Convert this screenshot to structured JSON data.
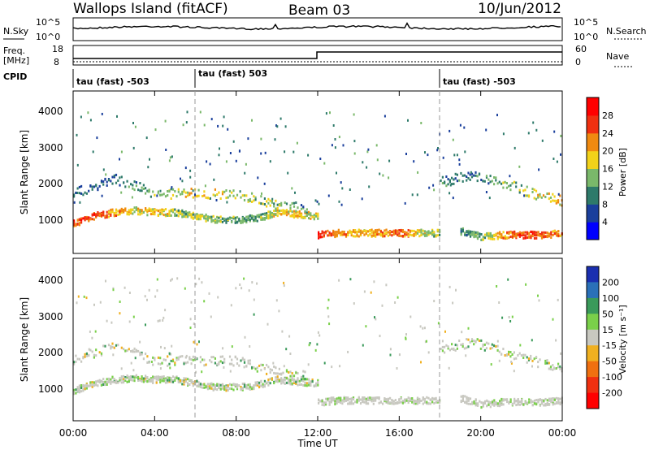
{
  "header": {
    "title": "Wallops Island (fitACF)",
    "beam": "Beam 03",
    "date": "10/Jun/2012"
  },
  "noise_panel": {
    "left_label": "N.Sky",
    "left_ticks": [
      "10^5",
      "10^0"
    ],
    "right_label": "N.Search",
    "right_ticks": [
      "10^5",
      "10^0"
    ]
  },
  "freq_panel": {
    "left_label_1": "Freq.",
    "left_label_2": "[MHz]",
    "left_ticks": [
      "18",
      "8"
    ],
    "right_label": "Nave",
    "right_ticks": [
      "60",
      "0"
    ]
  },
  "cpid_panel": {
    "label": "CPID",
    "segments": [
      "tau (fast) -503",
      "tau (fast) 503",
      "tau (fast) -503"
    ]
  },
  "power_panel": {
    "ylabel": "Slant Range [km]",
    "yticks": [
      "1000",
      "2000",
      "3000",
      "4000"
    ],
    "colorbar_label": "Power [dB]",
    "colorbar_ticks": [
      "4",
      "8",
      "12",
      "16",
      "20",
      "24",
      "28"
    ],
    "colors": [
      "#0000ff",
      "#1a3f9c",
      "#2e7a6a",
      "#7ab86a",
      "#f2d21a",
      "#f08a10",
      "#f03010",
      "#ff0000"
    ]
  },
  "velocity_panel": {
    "ylabel": "Slant Range [km]",
    "yticks": [
      "1000",
      "2000",
      "3000",
      "4000"
    ],
    "colorbar_label": "Velocity [m s⁻¹]",
    "colorbar_ticks": [
      "200",
      "100",
      "50",
      "15",
      "-15",
      "-50",
      "-100",
      "-200"
    ],
    "colors": [
      "#1a2fb0",
      "#2a70b8",
      "#3a9a5a",
      "#7ad04a",
      "#c8c8c0",
      "#f0b020",
      "#f07010",
      "#f03010",
      "#ff0000"
    ]
  },
  "x_axis": {
    "label": "Time UT",
    "ticks": [
      "00:00",
      "04:00",
      "08:00",
      "12:00",
      "16:00",
      "20:00",
      "00:00"
    ]
  },
  "chart_data": {
    "type": "heatmap",
    "x_range_hours": [
      0,
      24
    ],
    "y_range_km": [
      180,
      4500
    ],
    "freq_mhz_segments": [
      {
        "from_hours": 0,
        "to_hours": 12,
        "value": 10
      },
      {
        "from_hours": 12,
        "to_hours": 24,
        "value": 13
      }
    ],
    "cpid_change_hours": [
      6,
      18
    ],
    "scatter_bands": [
      {
        "t": [
          0,
          1,
          2,
          3,
          4,
          5,
          6,
          7,
          8,
          9,
          10,
          11,
          12
        ],
        "range_km": [
          1000,
          1200,
          1300,
          1350,
          1300,
          1300,
          1200,
          1100,
          1100,
          1150,
          1300,
          1250,
          1200
        ],
        "power_db": [
          26,
          25,
          22,
          18,
          20,
          14,
          16,
          14,
          12,
          12,
          18,
          20,
          16
        ]
      },
      {
        "t": [
          12,
          13,
          14,
          15,
          16,
          17,
          18
        ],
        "range_km": [
          700,
          750,
          750,
          750,
          750,
          750,
          750
        ],
        "power_db": [
          28,
          22,
          18,
          22,
          24,
          18,
          14
        ]
      },
      {
        "t": [
          19,
          20,
          21,
          22,
          23,
          24
        ],
        "range_km": [
          800,
          650,
          700,
          700,
          700,
          750
        ],
        "power_db": [
          10,
          14,
          22,
          26,
          24,
          22
        ]
      },
      {
        "t": [
          0,
          2,
          4,
          6,
          8,
          10,
          11.5
        ],
        "range_km": [
          1800,
          2200,
          1800,
          1800,
          1800,
          1500,
          1400
        ],
        "power_db": [
          8,
          8,
          14,
          18,
          16,
          14,
          10
        ]
      },
      {
        "t": [
          18,
          19.5,
          21,
          22.5,
          24
        ],
        "range_km": [
          2100,
          2300,
          2100,
          1800,
          1600
        ],
        "power_db": [
          10,
          8,
          12,
          16,
          20
        ]
      }
    ]
  }
}
